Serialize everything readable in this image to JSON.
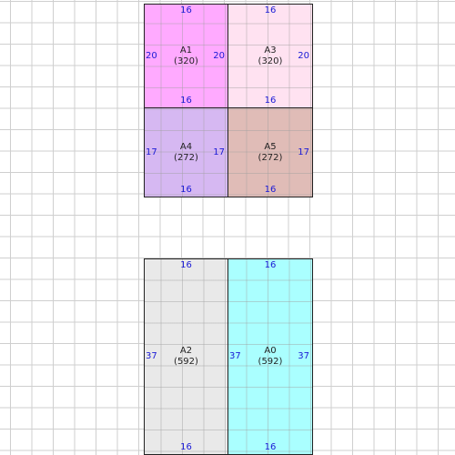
{
  "colors": {
    "grid_line": "#cfcfcf",
    "dimension_text": "#1a1ad6",
    "outline": "#222222"
  },
  "blocks": [
    {
      "id": "A1",
      "label": "A1",
      "area": "(320)",
      "fill": "#ffaaff",
      "dims": {
        "top": "16",
        "bottom": "16",
        "left": "20",
        "right": "20"
      }
    },
    {
      "id": "A3",
      "label": "A3",
      "area": "(320)",
      "fill": "#ffe2f1",
      "dims": {
        "top": "16",
        "bottom": "16",
        "left": "",
        "right": "20"
      }
    },
    {
      "id": "A4",
      "label": "A4",
      "area": "(272)",
      "fill": "#d6b8f2",
      "dims": {
        "top": "",
        "bottom": "16",
        "left": "17",
        "right": "17"
      }
    },
    {
      "id": "A5",
      "label": "A5",
      "area": "(272)",
      "fill": "#e0bcb7",
      "dims": {
        "top": "",
        "bottom": "16",
        "left": "",
        "right": "17"
      }
    },
    {
      "id": "A2",
      "label": "A2",
      "area": "(592)",
      "fill": "#e9e9e9",
      "dims": {
        "top": "16",
        "bottom": "16",
        "left": "37",
        "right": ""
      }
    },
    {
      "id": "A0",
      "label": "A0",
      "area": "(592)",
      "fill": "#aaffff",
      "dims": {
        "top": "16",
        "bottom": "16",
        "left": "37",
        "right": "37"
      }
    }
  ]
}
